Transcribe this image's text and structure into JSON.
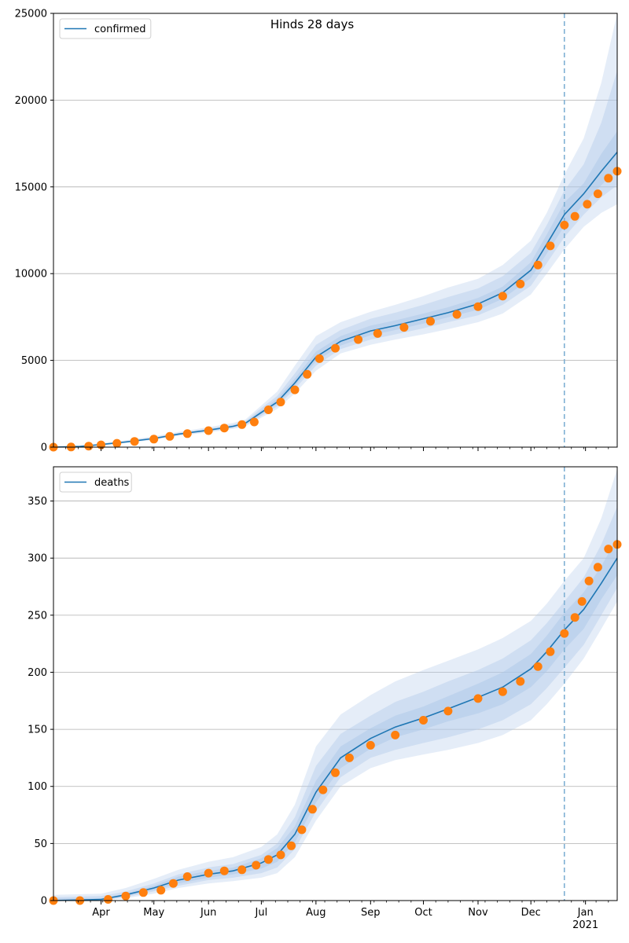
{
  "figure": {
    "title": "Hinds 28 days"
  },
  "colors": {
    "model_line": "#1f77b4",
    "observed_points": "#ff7f0e",
    "band": "#aec7e8",
    "grid": "#b0b0b0",
    "forecast_marker": "#7fb0d3"
  },
  "chart_data": [
    {
      "type": "line",
      "title": "",
      "xlabel": "",
      "ylabel": "",
      "x_axis": {
        "type": "date",
        "range": [
          "2020-03-05",
          "2021-01-19"
        ],
        "major_ticks": [
          {
            "date": "2020-04-01",
            "label": "Apr"
          },
          {
            "date": "2020-05-01",
            "label": "May"
          },
          {
            "date": "2020-06-01",
            "label": "Jun"
          },
          {
            "date": "2020-07-01",
            "label": "Jul"
          },
          {
            "date": "2020-08-01",
            "label": "Aug"
          },
          {
            "date": "2020-09-01",
            "label": "Sep"
          },
          {
            "date": "2020-10-01",
            "label": "Oct"
          },
          {
            "date": "2020-11-01",
            "label": "Nov"
          },
          {
            "date": "2020-12-01",
            "label": "Dec"
          },
          {
            "date": "2021-01-01",
            "label": "Jan\n2021"
          }
        ],
        "tick_labels_visible": false
      },
      "ylim": [
        0,
        25000
      ],
      "y_ticks": [
        0,
        5000,
        10000,
        15000,
        20000,
        25000
      ],
      "grid": "horizontal",
      "legend": {
        "position": "upper-left",
        "entries": [
          "confirmed"
        ]
      },
      "forecast_start": "2020-12-20",
      "model": {
        "name": "confirmed",
        "points": [
          {
            "x": "2020-03-05",
            "y": 0
          },
          {
            "x": "2020-03-20",
            "y": 40
          },
          {
            "x": "2020-04-01",
            "y": 150
          },
          {
            "x": "2020-04-15",
            "y": 300
          },
          {
            "x": "2020-05-01",
            "y": 500
          },
          {
            "x": "2020-05-15",
            "y": 750
          },
          {
            "x": "2020-06-01",
            "y": 980
          },
          {
            "x": "2020-06-15",
            "y": 1200
          },
          {
            "x": "2020-06-22",
            "y": 1380
          },
          {
            "x": "2020-07-01",
            "y": 2000
          },
          {
            "x": "2020-07-10",
            "y": 2600
          },
          {
            "x": "2020-07-20",
            "y": 3700
          },
          {
            "x": "2020-08-01",
            "y": 5200
          },
          {
            "x": "2020-08-15",
            "y": 6100
          },
          {
            "x": "2020-09-01",
            "y": 6700
          },
          {
            "x": "2020-09-15",
            "y": 7000
          },
          {
            "x": "2020-10-01",
            "y": 7400
          },
          {
            "x": "2020-10-15",
            "y": 7750
          },
          {
            "x": "2020-11-01",
            "y": 8250
          },
          {
            "x": "2020-11-15",
            "y": 8900
          },
          {
            "x": "2020-12-01",
            "y": 10200
          },
          {
            "x": "2020-12-10",
            "y": 11700
          },
          {
            "x": "2020-12-20",
            "y": 13400
          },
          {
            "x": "2020-12-31",
            "y": 14600
          },
          {
            "x": "2021-01-10",
            "y": 15900
          },
          {
            "x": "2021-01-19",
            "y": 17000
          }
        ],
        "bands": [
          {
            "lower": [
              0,
              20,
              100,
              240,
              420,
              650,
              850,
              1050,
              1200,
              1700,
              2200,
              3100,
              4400,
              5400,
              5900,
              6200,
              6500,
              6800,
              7200,
              7700,
              8800,
              10000,
              11400,
              12700,
              13500,
              14000
            ],
            "upper": [
              0,
              70,
              220,
              400,
              620,
              880,
              1150,
              1400,
              1600,
              2400,
              3200,
              4700,
              6400,
              7200,
              7800,
              8200,
              8700,
              9200,
              9700,
              10500,
              11900,
              13500,
              15700,
              17800,
              21000,
              25000
            ]
          },
          {
            "lower": [
              0,
              28,
              120,
              265,
              455,
              690,
              900,
              1110,
              1270,
              1800,
              2350,
              3350,
              4700,
              5650,
              6200,
              6500,
              6850,
              7200,
              7600,
              8200,
              9300,
              10600,
              12100,
              13400,
              14400,
              15100
            ],
            "upper": [
              0,
              55,
              190,
              355,
              565,
              820,
              1070,
              1300,
              1500,
              2250,
              2950,
              4250,
              5900,
              6750,
              7400,
              7750,
              8200,
              8650,
              9150,
              9850,
              11200,
              12800,
              14800,
              16300,
              18700,
              21700
            ]
          },
          {
            "lower": [
              0,
              34,
              135,
              285,
              480,
              720,
              945,
              1160,
              1325,
              1900,
              2470,
              3530,
              4950,
              5850,
              6450,
              6750,
              7120,
              7480,
              7920,
              8550,
              9750,
              11150,
              12750,
              14000,
              15100,
              16000
            ],
            "upper": [
              0,
              47,
              168,
              322,
              528,
              785,
              1025,
              1250,
              1440,
              2120,
              2780,
              3950,
              5500,
              6400,
              7000,
              7300,
              7700,
              8060,
              8600,
              9250,
              10650,
              12250,
              14100,
              15200,
              16900,
              18200
            ]
          }
        ]
      },
      "observed": {
        "name": "confirmed observed",
        "points": [
          {
            "x": "2020-03-05",
            "y": 0
          },
          {
            "x": "2020-03-15",
            "y": 10
          },
          {
            "x": "2020-03-25",
            "y": 60
          },
          {
            "x": "2020-04-01",
            "y": 130
          },
          {
            "x": "2020-04-10",
            "y": 220
          },
          {
            "x": "2020-04-20",
            "y": 330
          },
          {
            "x": "2020-05-01",
            "y": 460
          },
          {
            "x": "2020-05-10",
            "y": 620
          },
          {
            "x": "2020-05-20",
            "y": 780
          },
          {
            "x": "2020-06-01",
            "y": 950
          },
          {
            "x": "2020-06-10",
            "y": 1100
          },
          {
            "x": "2020-06-20",
            "y": 1300
          },
          {
            "x": "2020-06-27",
            "y": 1450
          },
          {
            "x": "2020-07-05",
            "y": 2150
          },
          {
            "x": "2020-07-12",
            "y": 2600
          },
          {
            "x": "2020-07-20",
            "y": 3300
          },
          {
            "x": "2020-07-27",
            "y": 4200
          },
          {
            "x": "2020-08-03",
            "y": 5100
          },
          {
            "x": "2020-08-12",
            "y": 5700
          },
          {
            "x": "2020-08-25",
            "y": 6200
          },
          {
            "x": "2020-09-05",
            "y": 6550
          },
          {
            "x": "2020-09-20",
            "y": 6900
          },
          {
            "x": "2020-10-05",
            "y": 7250
          },
          {
            "x": "2020-10-20",
            "y": 7650
          },
          {
            "x": "2020-11-01",
            "y": 8100
          },
          {
            "x": "2020-11-15",
            "y": 8700
          },
          {
            "x": "2020-11-25",
            "y": 9400
          },
          {
            "x": "2020-12-05",
            "y": 10500
          },
          {
            "x": "2020-12-12",
            "y": 11600
          },
          {
            "x": "2020-12-20",
            "y": 12800
          },
          {
            "x": "2020-12-26",
            "y": 13300
          },
          {
            "x": "2021-01-02",
            "y": 14000
          },
          {
            "x": "2021-01-08",
            "y": 14600
          },
          {
            "x": "2021-01-14",
            "y": 15500
          },
          {
            "x": "2021-01-19",
            "y": 15900
          }
        ]
      }
    },
    {
      "type": "line",
      "title": "",
      "xlabel": "",
      "ylabel": "",
      "x_axis": {
        "type": "date",
        "range": [
          "2020-03-05",
          "2021-01-19"
        ],
        "major_ticks": [
          {
            "date": "2020-04-01",
            "label": "Apr"
          },
          {
            "date": "2020-05-01",
            "label": "May"
          },
          {
            "date": "2020-06-01",
            "label": "Jun"
          },
          {
            "date": "2020-07-01",
            "label": "Jul"
          },
          {
            "date": "2020-08-01",
            "label": "Aug"
          },
          {
            "date": "2020-09-01",
            "label": "Sep"
          },
          {
            "date": "2020-10-01",
            "label": "Oct"
          },
          {
            "date": "2020-11-01",
            "label": "Nov"
          },
          {
            "date": "2020-12-01",
            "label": "Dec"
          },
          {
            "date": "2021-01-01",
            "label": "Jan\n2021"
          }
        ],
        "tick_labels_visible": true
      },
      "ylim": [
        0,
        380
      ],
      "y_ticks": [
        0,
        50,
        100,
        150,
        200,
        250,
        300,
        350
      ],
      "grid": "horizontal",
      "legend": {
        "position": "upper-left",
        "entries": [
          "deaths"
        ]
      },
      "forecast_start": "2020-12-20",
      "model": {
        "name": "deaths",
        "points": [
          {
            "x": "2020-03-05",
            "y": 0
          },
          {
            "x": "2020-04-01",
            "y": 1
          },
          {
            "x": "2020-04-15",
            "y": 5
          },
          {
            "x": "2020-05-01",
            "y": 11
          },
          {
            "x": "2020-05-15",
            "y": 18
          },
          {
            "x": "2020-06-01",
            "y": 23
          },
          {
            "x": "2020-06-15",
            "y": 26
          },
          {
            "x": "2020-07-01",
            "y": 33
          },
          {
            "x": "2020-07-10",
            "y": 40
          },
          {
            "x": "2020-07-20",
            "y": 58
          },
          {
            "x": "2020-08-01",
            "y": 95
          },
          {
            "x": "2020-08-15",
            "y": 125
          },
          {
            "x": "2020-09-01",
            "y": 142
          },
          {
            "x": "2020-09-15",
            "y": 152
          },
          {
            "x": "2020-10-01",
            "y": 160
          },
          {
            "x": "2020-10-15",
            "y": 168
          },
          {
            "x": "2020-11-01",
            "y": 178
          },
          {
            "x": "2020-11-15",
            "y": 187
          },
          {
            "x": "2020-12-01",
            "y": 203
          },
          {
            "x": "2020-12-10",
            "y": 218
          },
          {
            "x": "2020-12-20",
            "y": 237
          },
          {
            "x": "2020-12-31",
            "y": 255
          },
          {
            "x": "2021-01-10",
            "y": 278
          },
          {
            "x": "2021-01-19",
            "y": 300
          }
        ],
        "bands": [
          {
            "lower": [
              0,
              0,
              2,
              6,
              11,
              15,
              17,
              20,
              24,
              38,
              70,
              100,
              116,
              123,
              128,
              132,
              138,
              145,
              158,
              172,
              190,
              212,
              238,
              262
            ],
            "upper": [
              5,
              6,
              11,
              19,
              27,
              34,
              38,
              47,
              58,
              84,
              135,
              163,
              180,
              192,
              202,
              210,
              220,
              230,
              245,
              260,
              280,
              300,
              335,
              378
            ]
          },
          {
            "lower": [
              0,
              0,
              3,
              8,
              13,
              18,
              20,
              24,
              29,
              45,
              78,
              108,
              125,
              132,
              138,
              143,
              150,
              158,
              172,
              186,
              204,
              224,
              250,
              274
            ],
            "upper": [
              3,
              4,
              8,
              15,
              23,
              29,
              32,
              40,
              50,
              73,
              118,
              146,
              162,
              174,
              183,
              192,
              202,
              212,
              228,
              243,
              262,
              283,
              312,
              345
            ]
          },
          {
            "lower": [
              0,
              0,
              4,
              9,
              15,
              20,
              23,
              28,
              34,
              51,
              86,
              116,
              133,
              143,
              150,
              157,
              164,
              172,
              187,
              201,
              220,
              238,
              264,
              285
            ],
            "upper": [
              2,
              2,
              6,
              13,
              21,
              26,
              29,
              37,
              46,
              65,
              105,
              135,
              151,
              162,
              170,
              179,
              190,
              200,
              216,
              232,
              252,
              270,
              293,
              318
            ]
          }
        ]
      },
      "observed": {
        "name": "deaths observed",
        "points": [
          {
            "x": "2020-03-05",
            "y": 0
          },
          {
            "x": "2020-03-20",
            "y": 0
          },
          {
            "x": "2020-04-05",
            "y": 1
          },
          {
            "x": "2020-04-15",
            "y": 4
          },
          {
            "x": "2020-04-25",
            "y": 7
          },
          {
            "x": "2020-05-05",
            "y": 9
          },
          {
            "x": "2020-05-12",
            "y": 15
          },
          {
            "x": "2020-05-20",
            "y": 21
          },
          {
            "x": "2020-06-01",
            "y": 24
          },
          {
            "x": "2020-06-10",
            "y": 26
          },
          {
            "x": "2020-06-20",
            "y": 27
          },
          {
            "x": "2020-06-28",
            "y": 31
          },
          {
            "x": "2020-07-05",
            "y": 36
          },
          {
            "x": "2020-07-12",
            "y": 40
          },
          {
            "x": "2020-07-18",
            "y": 48
          },
          {
            "x": "2020-07-24",
            "y": 62
          },
          {
            "x": "2020-07-30",
            "y": 80
          },
          {
            "x": "2020-08-05",
            "y": 97
          },
          {
            "x": "2020-08-12",
            "y": 112
          },
          {
            "x": "2020-08-20",
            "y": 125
          },
          {
            "x": "2020-09-01",
            "y": 136
          },
          {
            "x": "2020-09-15",
            "y": 145
          },
          {
            "x": "2020-10-01",
            "y": 158
          },
          {
            "x": "2020-10-15",
            "y": 166
          },
          {
            "x": "2020-11-01",
            "y": 177
          },
          {
            "x": "2020-11-15",
            "y": 183
          },
          {
            "x": "2020-11-25",
            "y": 192
          },
          {
            "x": "2020-12-05",
            "y": 205
          },
          {
            "x": "2020-12-12",
            "y": 218
          },
          {
            "x": "2020-12-20",
            "y": 234
          },
          {
            "x": "2020-12-26",
            "y": 248
          },
          {
            "x": "2020-12-30",
            "y": 262
          },
          {
            "x": "2021-01-03",
            "y": 280
          },
          {
            "x": "2021-01-08",
            "y": 292
          },
          {
            "x": "2021-01-14",
            "y": 308
          },
          {
            "x": "2021-01-19",
            "y": 312
          }
        ]
      }
    }
  ]
}
